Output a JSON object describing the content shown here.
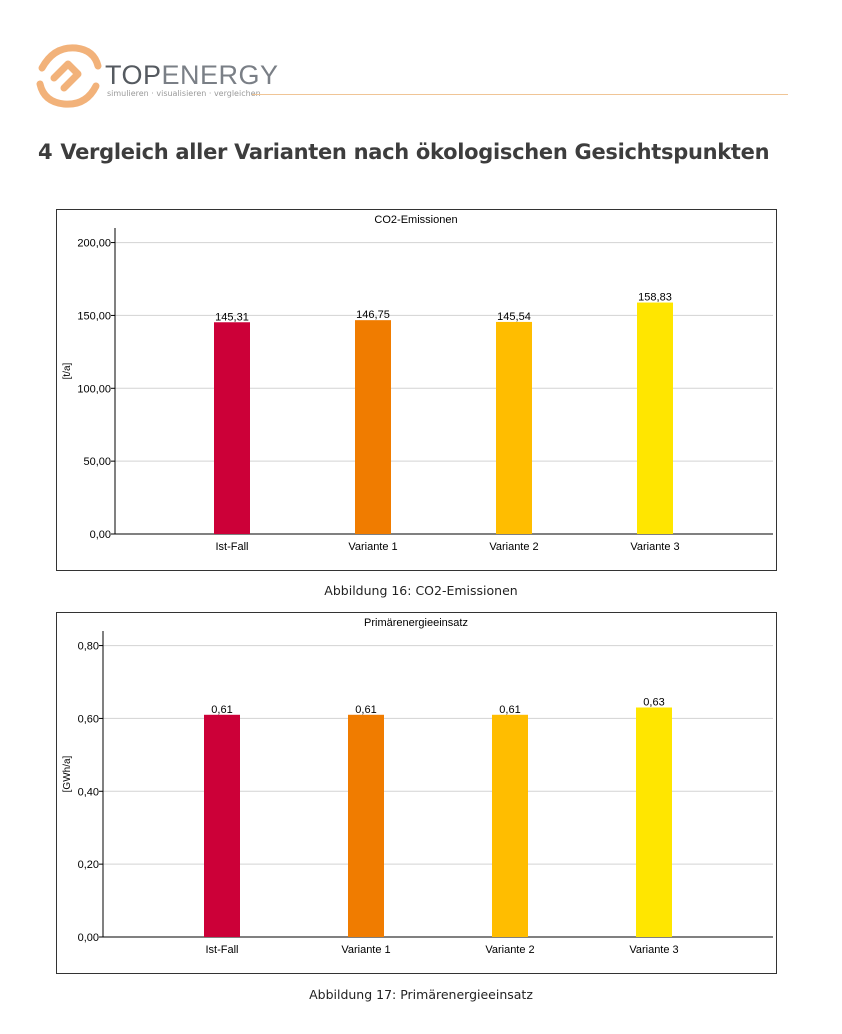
{
  "header": {
    "brand_top": "TOP",
    "brand_energy": "ENERGY",
    "tagline": "simulieren · visualisieren · vergleichen"
  },
  "section": {
    "number": "4",
    "title": "Vergleich aller Varianten nach ökologischen Gesichtspunkten"
  },
  "colors": {
    "ist_fall": "#cc0038",
    "variante_1": "#f07c00",
    "variante_2": "#ffbd00",
    "variante_3": "#ffe600",
    "accent": "#f0b070"
  },
  "chart_data": [
    {
      "type": "bar",
      "title": "CO2-Emissionen",
      "ylabel": "[t/a]",
      "xlabel": "",
      "categories": [
        "Ist-Fall",
        "Variante 1",
        "Variante 2",
        "Variante 3"
      ],
      "values": [
        145.31,
        146.75,
        145.54,
        158.83
      ],
      "value_labels": [
        "145,31",
        "146,75",
        "145,54",
        "158,83"
      ],
      "ylim": [
        0,
        210
      ],
      "yticks": [
        0,
        50,
        100,
        150,
        200
      ],
      "ytick_labels": [
        "0,00",
        "50,00",
        "100,00",
        "150,00",
        "200,00"
      ],
      "grid": true
    },
    {
      "type": "bar",
      "title": "Primärenergieeinsatz",
      "ylabel": "[GWh/a]",
      "xlabel": "",
      "categories": [
        "Ist-Fall",
        "Variante 1",
        "Variante 2",
        "Variante 3"
      ],
      "values": [
        0.61,
        0.61,
        0.61,
        0.63
      ],
      "value_labels": [
        "0,61",
        "0,61",
        "0,61",
        "0,63"
      ],
      "ylim": [
        0,
        0.84
      ],
      "yticks": [
        0,
        0.2,
        0.4,
        0.6,
        0.8
      ],
      "ytick_labels": [
        "0,00",
        "0,20",
        "0,40",
        "0,60",
        "0,80"
      ],
      "grid": true
    }
  ],
  "captions": {
    "fig16": "Abbildung 16: CO2-Emissionen",
    "fig17": "Abbildung 17: Primärenergieeinsatz"
  }
}
